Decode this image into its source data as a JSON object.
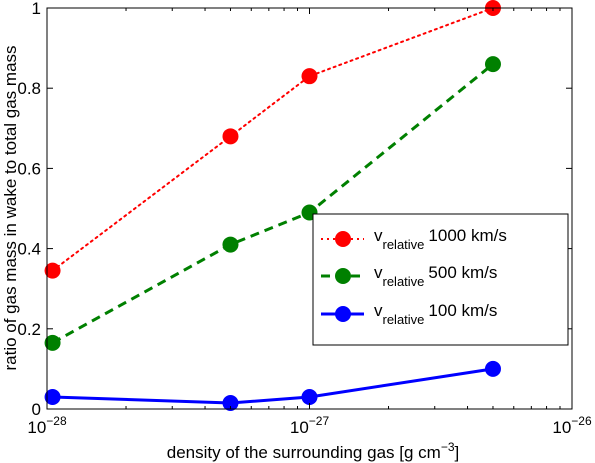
{
  "chart_data": {
    "type": "line",
    "xscale": "log",
    "xlim": [
      1e-28,
      1e-26
    ],
    "ylim": [
      0,
      1
    ],
    "xticks": [
      {
        "value": 1e-28,
        "base": "10",
        "exp": "−28"
      },
      {
        "value": 1e-27,
        "base": "10",
        "exp": "−27"
      },
      {
        "value": 1e-26,
        "base": "10",
        "exp": "−26"
      }
    ],
    "yticks": [
      "0",
      "0.2",
      "0.4",
      "0.6",
      "0.8",
      "1"
    ],
    "ytick_values": [
      0,
      0.2,
      0.4,
      0.6,
      0.8,
      1
    ],
    "xlabel_main": "density of the surrounding gas [g cm",
    "xlabel_sup": "−3",
    "xlabel_end": "]",
    "ylabel": "ratio of gas mass in wake to total gas mass",
    "grid": false,
    "legend_position": "center-right",
    "series": [
      {
        "name_base": "v",
        "name_sub": "relative",
        "name_value": "1000 km/s",
        "color": "#ff0000",
        "style": "dotted",
        "x": [
          1.05e-28,
          5e-28,
          1e-27,
          5e-27
        ],
        "y": [
          0.345,
          0.68,
          0.83,
          1.0
        ]
      },
      {
        "name_base": "v",
        "name_sub": "relative",
        "name_value": "500 km/s",
        "color": "#008000",
        "style": "dashed",
        "x": [
          1.05e-28,
          5e-28,
          1e-27,
          5e-27
        ],
        "y": [
          0.165,
          0.41,
          0.49,
          0.86
        ]
      },
      {
        "name_base": "v",
        "name_sub": "relative",
        "name_value": "100 km/s",
        "color": "#0000ff",
        "style": "solid",
        "x": [
          1.05e-28,
          5e-28,
          1e-27,
          5e-27
        ],
        "y": [
          0.03,
          0.015,
          0.03,
          0.1
        ]
      }
    ]
  }
}
